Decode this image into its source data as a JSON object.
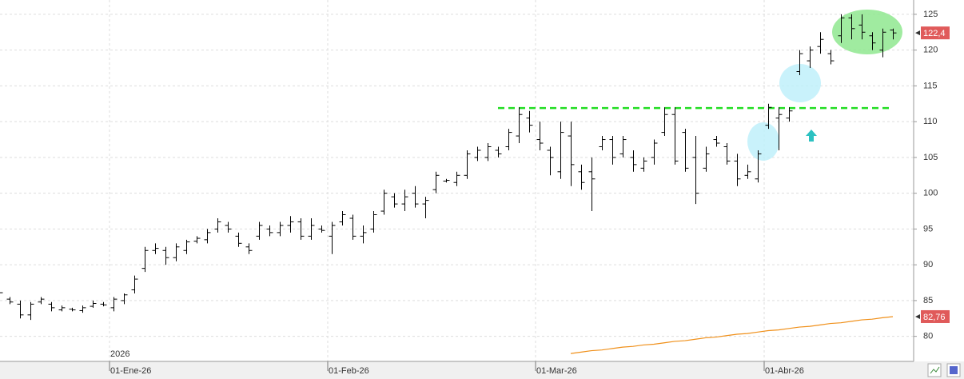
{
  "chart_data": {
    "type": "ohlc",
    "color": "#000000",
    "year_label": "2026",
    "categories": [
      null,
      null,
      null,
      null,
      null,
      null,
      null,
      null,
      null,
      null,
      null,
      "01-Ene-26",
      null,
      null,
      null,
      null,
      null,
      null,
      null,
      null,
      null,
      null,
      null,
      null,
      null,
      null,
      null,
      null,
      null,
      null,
      null,
      null,
      "01-Feb-26",
      null,
      null,
      null,
      null,
      null,
      null,
      null,
      null,
      null,
      null,
      null,
      null,
      null,
      null,
      null,
      null,
      null,
      null,
      null,
      "01-Mar-26",
      null,
      null,
      null,
      null,
      null,
      null,
      null,
      null,
      null,
      null,
      null,
      null,
      null,
      null,
      null,
      null,
      null,
      null,
      null,
      null,
      null,
      "01-Abr-26",
      null,
      null,
      null,
      null,
      null,
      null,
      null,
      null,
      null,
      null,
      null,
      null
    ],
    "open": [
      86,
      85.2,
      84.5,
      83,
      84.8,
      84.5,
      83.7,
      83.8,
      83.6,
      84.2,
      84.5,
      84,
      85,
      86.5,
      89.5,
      92,
      92,
      91,
      92,
      93.3,
      93.5,
      95,
      95.5,
      94,
      92.5,
      94,
      95,
      94.5,
      95.5,
      96,
      94,
      95,
      94,
      96,
      96.5,
      94,
      95,
      97.5,
      99.5,
      98.5,
      100,
      98.5,
      100.5,
      101.7,
      101.5,
      102.5,
      105,
      105,
      106,
      106.5,
      108,
      110.5,
      107.5,
      106,
      103,
      108,
      103,
      103,
      106.5,
      107.5,
      105.5,
      105,
      103.5,
      105,
      108.5,
      111,
      108.5,
      105,
      103.5,
      107.5,
      106.5,
      104.5,
      102.5,
      102,
      109.5,
      110.5,
      110.5,
      117,
      118.5,
      120.5,
      119.5,
      122,
      124.5,
      123.5,
      122,
      120,
      122.8
    ],
    "high": [
      86.3,
      85.5,
      85,
      84.8,
      85.5,
      84.8,
      84.3,
      84,
      84.3,
      85,
      84.8,
      85.5,
      86,
      88.5,
      92.5,
      93,
      92.5,
      93,
      93.5,
      94,
      95,
      96.5,
      96,
      94.5,
      93,
      96,
      95.5,
      96,
      96.8,
      96.5,
      96.5,
      95.5,
      96,
      97.5,
      97,
      95.5,
      97.5,
      100.5,
      100,
      100.5,
      101,
      99.5,
      103,
      102,
      103,
      106,
      106.5,
      107,
      106.5,
      109,
      112,
      111.5,
      110,
      106.5,
      110,
      110,
      104,
      105,
      108,
      108,
      108,
      106,
      105,
      107.5,
      112,
      112,
      109,
      108,
      106.5,
      108,
      107,
      105.5,
      104,
      106,
      112.5,
      112,
      112,
      120,
      120.5,
      122.5,
      120,
      125,
      125,
      125,
      122.5,
      123,
      123
    ],
    "low": [
      85.8,
      84.5,
      82.5,
      82.3,
      84.5,
      83.5,
      83.5,
      83.5,
      83.3,
      84,
      84.2,
      83.5,
      84.5,
      86,
      89,
      91.5,
      90,
      90.5,
      91.5,
      93,
      93,
      94.5,
      94.5,
      92.5,
      91.5,
      93.5,
      94,
      94,
      94.5,
      93.5,
      93.5,
      94.5,
      91.5,
      95.5,
      93.5,
      93,
      94.5,
      97,
      98,
      97.5,
      98,
      96.5,
      100,
      101.5,
      101,
      102,
      104.5,
      104.5,
      105,
      106,
      107,
      108.5,
      106,
      102.5,
      102,
      101,
      100.5,
      97.5,
      106,
      104,
      105,
      103,
      103,
      104,
      108,
      104,
      103,
      98.5,
      103,
      106.5,
      104,
      101,
      102,
      101.5,
      109,
      106,
      110,
      116.5,
      117.5,
      119.5,
      118,
      121,
      121.5,
      121.5,
      120,
      119,
      121.5
    ],
    "close": [
      86.1,
      84.8,
      83,
      84.5,
      85.2,
      84,
      84,
      83.7,
      84,
      84.6,
      84.4,
      85.2,
      85.8,
      88,
      92,
      92.3,
      91,
      92.5,
      93.2,
      93.7,
      94.5,
      96,
      95,
      93,
      92,
      95.5,
      94.5,
      95.5,
      96,
      94,
      95.5,
      94.8,
      95.5,
      97,
      94,
      94.5,
      97,
      100,
      98.5,
      99.5,
      98.5,
      99,
      102.5,
      101.8,
      102.5,
      105.5,
      106,
      106.5,
      105.5,
      108.5,
      111,
      109.5,
      107,
      105,
      108.5,
      104,
      101.5,
      102,
      107.5,
      105,
      107.5,
      104,
      104.5,
      107,
      111,
      104.5,
      103.5,
      100,
      105.5,
      107,
      104.5,
      102,
      103,
      105.5,
      112,
      111,
      111.5,
      119.5,
      120,
      121.5,
      118.5,
      124.5,
      123,
      122.5,
      121,
      122.5,
      122.4
    ],
    "ma": {
      "color": "#f0901a",
      "values": [
        null,
        null,
        null,
        null,
        null,
        null,
        null,
        null,
        null,
        null,
        null,
        null,
        null,
        null,
        null,
        null,
        null,
        null,
        null,
        null,
        null,
        null,
        null,
        null,
        null,
        null,
        null,
        null,
        null,
        null,
        null,
        null,
        null,
        null,
        null,
        null,
        null,
        null,
        null,
        null,
        null,
        null,
        null,
        null,
        null,
        null,
        null,
        null,
        null,
        null,
        null,
        null,
        null,
        null,
        null,
        77.6,
        77.8,
        78.0,
        78.1,
        78.3,
        78.5,
        78.6,
        78.8,
        78.9,
        79.1,
        79.3,
        79.4,
        79.6,
        79.8,
        79.9,
        80.1,
        80.3,
        80.4,
        80.6,
        80.8,
        80.9,
        81.1,
        81.3,
        81.4,
        81.6,
        81.8,
        81.9,
        82.1,
        82.3,
        82.4,
        82.6,
        82.76
      ]
    },
    "support": {
      "value": 111.9,
      "color": "#22dd22",
      "x_range": [
        48,
        86
      ]
    },
    "markers": [
      {
        "value": 122.4,
        "label": "122,4",
        "color": "#e05a5a"
      },
      {
        "value": 82.76,
        "label": "82,76",
        "color": "#e05a5a"
      }
    ],
    "ylim": [
      76.5,
      127
    ],
    "yticks": [
      80,
      85,
      90,
      95,
      100,
      105,
      110,
      115,
      120,
      125
    ],
    "grid": true
  }
}
